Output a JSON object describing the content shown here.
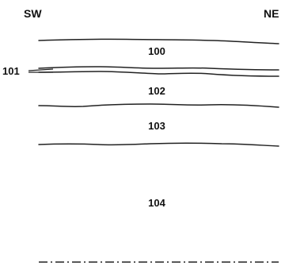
{
  "directions": {
    "left": "SW",
    "right": "NE"
  },
  "units": [
    {
      "id": "unit-100",
      "label": "100"
    },
    {
      "id": "unit-101",
      "label": "101"
    },
    {
      "id": "unit-102",
      "label": "102"
    },
    {
      "id": "unit-103",
      "label": "103"
    },
    {
      "id": "unit-104",
      "label": "104"
    }
  ]
}
